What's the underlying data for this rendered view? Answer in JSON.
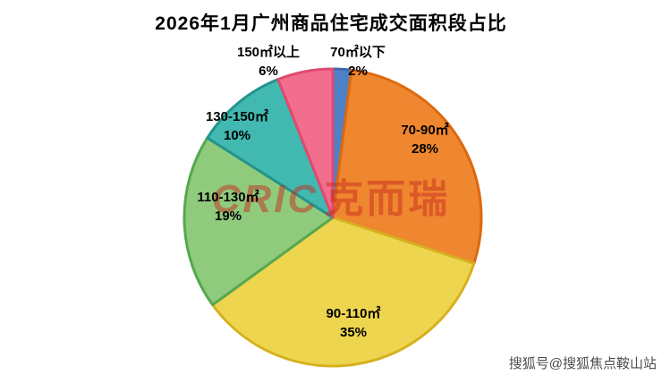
{
  "title": "2026年1月广州商品住宅成交面积段占比",
  "watermark": {
    "brand": "CRIC",
    "brand_cn": "克而瑞",
    "color": "#c72c1d"
  },
  "footer_watermark": "搜狐号@搜狐焦点鞍山站",
  "chart_data": {
    "type": "pie",
    "title": "2026年1月广州商品住宅成交面积段占比",
    "start_angle_deg": -90,
    "direction": "clockwise",
    "legend_position": "none",
    "slices": [
      {
        "key": "below-70",
        "label": "70㎡以下",
        "pct_label": "2%",
        "value": 2,
        "fill": "#4f81c7",
        "stroke": "#3a69ad"
      },
      {
        "key": "70-90",
        "label": "70-90㎡",
        "pct_label": "28%",
        "value": 28,
        "fill": "#ef8630",
        "stroke": "#dd690f"
      },
      {
        "key": "90-110",
        "label": "90-110㎡",
        "pct_label": "35%",
        "value": 35,
        "fill": "#eed54f",
        "stroke": "#d6b01e"
      },
      {
        "key": "110-130",
        "label": "110-130㎡",
        "pct_label": "19%",
        "value": 19,
        "fill": "#8fca7d",
        "stroke": "#55a84f"
      },
      {
        "key": "130-150",
        "label": "130-150㎡",
        "pct_label": "10%",
        "value": 10,
        "fill": "#41b9b1",
        "stroke": "#23948c"
      },
      {
        "key": "150-plus",
        "label": "150㎡以上",
        "pct_label": "6%",
        "value": 6,
        "fill": "#f26e8e",
        "stroke": "#e04a6f"
      }
    ]
  }
}
